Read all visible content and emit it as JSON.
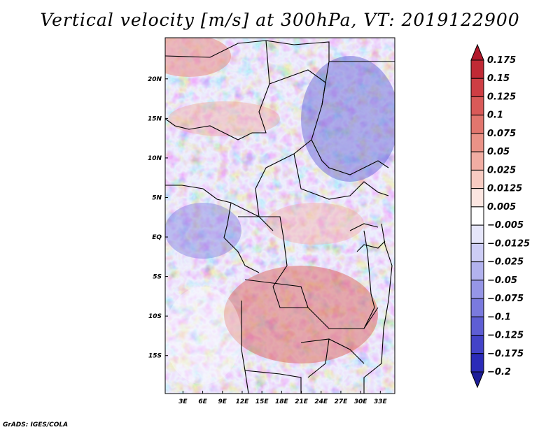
{
  "chart_data": {
    "type": "heatmap",
    "title": "Vertical velocity [m/s] at 300hPa, VT: 2019122900",
    "xlabel": "",
    "ylabel": "",
    "x_ticks": [
      "3E",
      "6E",
      "9E",
      "12E",
      "15E",
      "18E",
      "21E",
      "24E",
      "27E",
      "30E",
      "33E"
    ],
    "x_tick_values": [
      3,
      6,
      9,
      12,
      15,
      18,
      21,
      24,
      27,
      30,
      33
    ],
    "y_ticks": [
      "20N",
      "15N",
      "10N",
      "5N",
      "EQ",
      "5S",
      "10S",
      "15S"
    ],
    "y_tick_values": [
      20,
      15,
      10,
      5,
      0,
      -5,
      -10,
      -15
    ],
    "xlim": [
      0.3,
      35.2
    ],
    "ylim": [
      -19.8,
      25.2
    ],
    "colorbar": {
      "levels": [
        "0.175",
        "0.15",
        "0.125",
        "0.1",
        "0.075",
        "0.05",
        "0.025",
        "0.0125",
        "0.005",
        "−0.005",
        "−0.0125",
        "−0.025",
        "−0.05",
        "−0.075",
        "−0.1",
        "−0.125",
        "−0.175",
        "−0.2"
      ],
      "colors": [
        "#b2182b",
        "#c02a35",
        "#ce3e44",
        "#d95a58",
        "#e2766e",
        "#ea9287",
        "#f1ada3",
        "#f7cbc2",
        "#fce6e1",
        "#ffffff",
        "#e6e6fa",
        "#cdcdf5",
        "#b2b2ee",
        "#9696e6",
        "#7a7ade",
        "#5e5ed4",
        "#4343c8",
        "#2b2bb8",
        "#1d1d98"
      ]
    }
  },
  "credit": "GrADS: IGES/COLA"
}
